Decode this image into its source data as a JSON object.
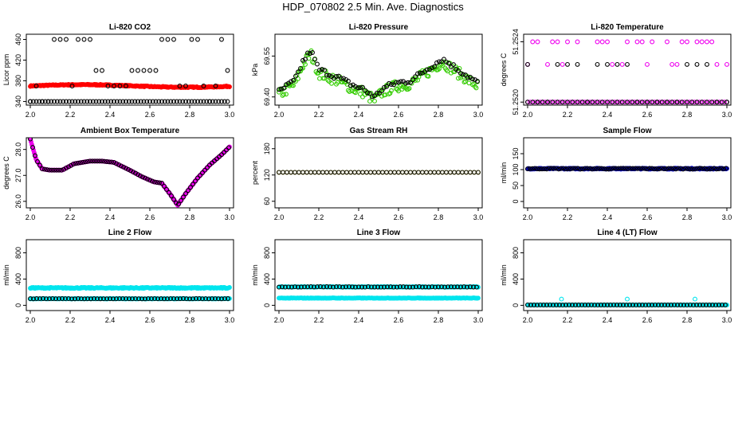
{
  "page_title": "HDP_070802  2.5 Min. Ave. Diagnostics",
  "chart_data": [
    {
      "type": "scatter",
      "title": "Li-820 CO2",
      "ylabel": "Licor ppm",
      "xlim": [
        1.98,
        3.02
      ],
      "ylim": [
        333,
        470
      ],
      "xticks": [
        2.0,
        2.2,
        2.4,
        2.6,
        2.8,
        3.0
      ],
      "yticks": [
        340,
        380,
        420,
        460
      ],
      "ytick_labels": [
        "340",
        "380",
        "420",
        "460"
      ],
      "series": [
        {
          "name": "line1",
          "color": "#ff0000",
          "fill": true,
          "kind": "band",
          "y": 370,
          "wave": 2.5,
          "spread": 1.8
        },
        {
          "name": "diag",
          "color": "#000000",
          "kind": "levels",
          "levels": [
            340,
            370,
            400,
            460
          ],
          "spacing": 0.03
        }
      ]
    },
    {
      "type": "scatter",
      "title": "Li-820 Pressure",
      "ylabel": "kPa",
      "xlim": [
        1.98,
        3.02
      ],
      "ylim": [
        69.37,
        69.63
      ],
      "xticks": [
        2.0,
        2.2,
        2.4,
        2.6,
        2.8,
        3.0
      ],
      "yticks": [
        69.4,
        69.55
      ],
      "ytick_labels": [
        "69.40",
        "69.55"
      ],
      "series": [
        {
          "name": "line1",
          "color": "#33cc00",
          "kind": "pressure",
          "offset": -0.012,
          "noise": 0.02,
          "step": 0.006
        },
        {
          "name": "line2",
          "color": "#000000",
          "kind": "pressure",
          "offset": 0.0,
          "noise": 0.01,
          "step": 0.012
        }
      ],
      "profile_x": [
        2.0,
        2.08,
        2.12,
        2.16,
        2.2,
        2.3,
        2.38,
        2.42,
        2.48,
        2.52,
        2.58,
        2.66,
        2.74,
        2.82,
        2.9,
        3.0
      ],
      "profile_y": [
        69.42,
        69.46,
        69.53,
        69.57,
        69.5,
        69.47,
        69.44,
        69.43,
        69.4,
        69.43,
        69.45,
        69.46,
        69.5,
        69.54,
        69.5,
        69.45
      ]
    },
    {
      "type": "scatter",
      "title": "Li-820 Temperature",
      "ylabel": "degrees C",
      "xlim": [
        1.98,
        3.02
      ],
      "ylim": [
        51.25198,
        51.25245
      ],
      "xticks": [
        2.0,
        2.2,
        2.4,
        2.6,
        2.8,
        3.0
      ],
      "yticks": [
        51.252,
        51.2524
      ],
      "ytick_labels": [
        "51.2520",
        "51.2524"
      ],
      "series": [
        {
          "name": "line1",
          "color": "#ee00ee",
          "kind": "levels",
          "levels": [
            51.252,
            51.25225,
            51.2524
          ],
          "spacing": 0.025
        },
        {
          "name": "diag",
          "color": "#000000",
          "kind": "levels",
          "levels": [
            51.252,
            51.25225
          ],
          "spacing": 0.05
        }
      ]
    },
    {
      "type": "scatter",
      "title": "Ambient Box Temperature",
      "ylabel": "degrees C",
      "xlim": [
        1.98,
        3.02
      ],
      "ylim": [
        25.75,
        28.45
      ],
      "xticks": [
        2.0,
        2.2,
        2.4,
        2.6,
        2.8,
        3.0
      ],
      "yticks": [
        26.0,
        27.0,
        28.0
      ],
      "ytick_labels": [
        "26.0",
        "27.0",
        "28.0"
      ],
      "series": [
        {
          "name": "line1",
          "color": "#ee00ee",
          "fill": true,
          "kind": "curve",
          "step": 0.004
        },
        {
          "name": "diag",
          "color": "#000000",
          "kind": "curve",
          "step": 0.012
        }
      ],
      "profile_x": [
        2.0,
        2.03,
        2.06,
        2.1,
        2.16,
        2.22,
        2.3,
        2.36,
        2.42,
        2.5,
        2.56,
        2.62,
        2.66,
        2.7,
        2.74,
        2.78,
        2.84,
        2.9,
        2.96,
        3.0
      ],
      "profile_y": [
        28.4,
        27.6,
        27.25,
        27.2,
        27.2,
        27.45,
        27.55,
        27.55,
        27.5,
        27.2,
        26.95,
        26.75,
        26.7,
        26.3,
        25.85,
        26.3,
        26.9,
        27.4,
        27.8,
        28.1
      ]
    },
    {
      "type": "scatter",
      "title": "Gas Stream RH",
      "ylabel": "percent",
      "xlim": [
        1.98,
        3.02
      ],
      "ylim": [
        45,
        205
      ],
      "xticks": [
        2.0,
        2.2,
        2.4,
        2.6,
        2.8,
        3.0
      ],
      "yticks": [
        60,
        120,
        180
      ],
      "ytick_labels": [
        "60",
        "120",
        "180"
      ],
      "series": [
        {
          "name": "line1",
          "color": "#ffee00",
          "kind": "flat",
          "y": 126,
          "step": 0.02,
          "jitter": 0
        },
        {
          "name": "diag",
          "color": "#000000",
          "kind": "flat",
          "y": 126,
          "step": 0.02,
          "jitter": 0
        }
      ]
    },
    {
      "type": "scatter",
      "title": "Sample Flow",
      "ylabel": "ml/min",
      "xlim": [
        1.98,
        3.02
      ],
      "ylim": [
        -20,
        200
      ],
      "xticks": [
        2.0,
        2.2,
        2.4,
        2.6,
        2.8,
        3.0
      ],
      "yticks": [
        0,
        50,
        100,
        150
      ],
      "ytick_labels": [
        "0",
        "50",
        "100",
        "150"
      ],
      "series": [
        {
          "name": "line1",
          "color": "#0000cc",
          "fill": true,
          "kind": "flat",
          "y": 103,
          "step": 0.004,
          "jitter": 1.5
        },
        {
          "name": "diag",
          "color": "#000000",
          "kind": "flat",
          "y": 103,
          "step": 0.012,
          "jitter": 1.5
        }
      ]
    },
    {
      "type": "scatter",
      "title": "Line 2 Flow",
      "ylabel": "ml/min",
      "xlim": [
        1.98,
        3.02
      ],
      "ylim": [
        -80,
        1000
      ],
      "xticks": [
        2.0,
        2.2,
        2.4,
        2.6,
        2.8,
        3.0
      ],
      "yticks": [
        0,
        400,
        800
      ],
      "ytick_labels": [
        "0",
        "400",
        "800"
      ],
      "series": [
        {
          "name": "line1",
          "color": "#00e5ee",
          "fill": true,
          "kind": "flat",
          "y": 265,
          "step": 0.004,
          "jitter": 8
        },
        {
          "name": "line2",
          "color": "#00e5ee",
          "fill": true,
          "kind": "flat",
          "y": 100,
          "step": 0.004,
          "jitter": 3
        },
        {
          "name": "diag",
          "color": "#000000",
          "kind": "flat",
          "y": 100,
          "step": 0.016,
          "jitter": 2
        }
      ]
    },
    {
      "type": "scatter",
      "title": "Line 3 Flow",
      "ylabel": "ml/min",
      "xlim": [
        1.98,
        3.02
      ],
      "ylim": [
        -80,
        1000
      ],
      "xticks": [
        2.0,
        2.2,
        2.4,
        2.6,
        2.8,
        3.0
      ],
      "yticks": [
        0,
        400,
        800
      ],
      "ytick_labels": [
        "0",
        "400",
        "800"
      ],
      "series": [
        {
          "name": "line1",
          "color": "#00e5ee",
          "fill": true,
          "kind": "flat",
          "y": 280,
          "step": 0.004,
          "jitter": 5
        },
        {
          "name": "line2",
          "color": "#00e5ee",
          "fill": true,
          "kind": "flat",
          "y": 110,
          "step": 0.004,
          "jitter": 3
        },
        {
          "name": "diag",
          "color": "#000000",
          "kind": "flat",
          "y": 280,
          "step": 0.016,
          "jitter": 4
        }
      ]
    },
    {
      "type": "scatter",
      "title": "Line 4 (LT) Flow",
      "ylabel": "ml/min",
      "xlim": [
        1.98,
        3.02
      ],
      "ylim": [
        -80,
        1000
      ],
      "xticks": [
        2.0,
        2.2,
        2.4,
        2.6,
        2.8,
        3.0
      ],
      "yticks": [
        0,
        400,
        800
      ],
      "ytick_labels": [
        "0",
        "400",
        "800"
      ],
      "series": [
        {
          "name": "line1",
          "color": "#00e5ee",
          "fill": true,
          "kind": "flat",
          "y": 5,
          "step": 0.004,
          "jitter": 1
        },
        {
          "name": "diag",
          "color": "#000000",
          "kind": "flat",
          "y": 5,
          "step": 0.016,
          "jitter": 1
        },
        {
          "name": "spikes",
          "color": "#00e5ee",
          "kind": "points",
          "x": [
            2.17,
            2.5,
            2.84
          ],
          "y": [
            95,
            95,
            95
          ]
        }
      ]
    }
  ]
}
